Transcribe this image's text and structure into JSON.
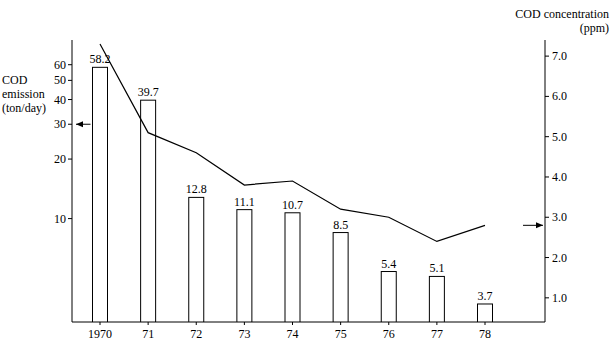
{
  "chart_data": {
    "type": "bar",
    "y_label": "COD\nemission\n(ton/day)",
    "y2_label": "COD concentration\n(ppm)",
    "categories": [
      "1970",
      "71",
      "72",
      "73",
      "74",
      "75",
      "76",
      "77",
      "78"
    ],
    "log": "y",
    "data_labels": true,
    "ylim": [
      3,
      80
    ],
    "yticks": [
      10,
      20,
      30,
      40,
      50,
      60
    ],
    "y2lim": [
      0.4,
      7.4
    ],
    "y2ticks": [
      {
        "value": 1,
        "label": "1.0"
      },
      {
        "value": 2,
        "label": "2.0"
      },
      {
        "value": 3,
        "label": "3.0"
      },
      {
        "value": 4,
        "label": "4.0"
      },
      {
        "value": 5,
        "label": "5.0"
      },
      {
        "value": 6,
        "label": "6.0"
      },
      {
        "value": 7,
        "label": "7.0"
      }
    ],
    "series": [
      {
        "type": "bar",
        "color": "#ffffff",
        "values": [
          58.2,
          39.7,
          12.8,
          11.1,
          10.7,
          8.5,
          5.4,
          5.1,
          3.7
        ]
      },
      {
        "type": "line",
        "axis": "y2",
        "color": "#000000",
        "line_style": "solid",
        "values": [
          7.3,
          5.1,
          4.6,
          3.8,
          3.9,
          3.2,
          3.0,
          2.4,
          2.8
        ]
      }
    ]
  }
}
